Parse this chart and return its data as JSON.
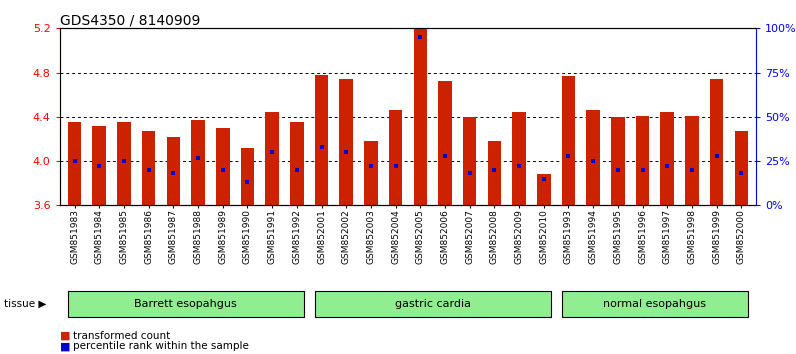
{
  "title": "GDS4350 / 8140909",
  "samples": [
    "GSM851983",
    "GSM851984",
    "GSM851985",
    "GSM851986",
    "GSM851987",
    "GSM851988",
    "GSM851989",
    "GSM851990",
    "GSM851991",
    "GSM851992",
    "GSM852001",
    "GSM852002",
    "GSM852003",
    "GSM852004",
    "GSM852005",
    "GSM852006",
    "GSM852007",
    "GSM852008",
    "GSM852009",
    "GSM852010",
    "GSM851993",
    "GSM851994",
    "GSM851995",
    "GSM851996",
    "GSM851997",
    "GSM851998",
    "GSM851999",
    "GSM852000"
  ],
  "transformed_count": [
    4.35,
    4.32,
    4.35,
    4.27,
    4.22,
    4.37,
    4.3,
    4.12,
    4.44,
    4.35,
    4.78,
    4.74,
    4.18,
    4.46,
    5.2,
    4.72,
    4.4,
    4.18,
    4.44,
    3.88,
    4.77,
    4.46,
    4.4,
    4.41,
    4.44,
    4.41,
    4.74,
    4.27
  ],
  "percentile_rank": [
    25,
    22,
    25,
    20,
    18,
    27,
    20,
    13,
    30,
    20,
    33,
    30,
    22,
    22,
    95,
    28,
    18,
    20,
    22,
    15,
    28,
    25,
    20,
    20,
    22,
    20,
    28,
    18
  ],
  "group_ranges": [
    [
      0,
      9,
      "Barrett esopahgus"
    ],
    [
      10,
      19,
      "gastric cardia"
    ],
    [
      20,
      27,
      "normal esopahgus"
    ]
  ],
  "group_color": "#90EE90",
  "ylim_left": [
    3.6,
    5.2
  ],
  "ylim_right": [
    0,
    100
  ],
  "bar_color": "#CC2200",
  "percentile_color": "#0000CC",
  "background_color": "#FFFFFF",
  "title_fontsize": 10,
  "tick_fontsize": 6.5,
  "bar_width": 0.55,
  "left_yticks": [
    3.6,
    4.0,
    4.4,
    4.8,
    5.2
  ],
  "right_yticks": [
    0,
    25,
    50,
    75,
    100
  ],
  "right_yticklabels": [
    "0%",
    "25%",
    "50%",
    "75%",
    "100%"
  ]
}
